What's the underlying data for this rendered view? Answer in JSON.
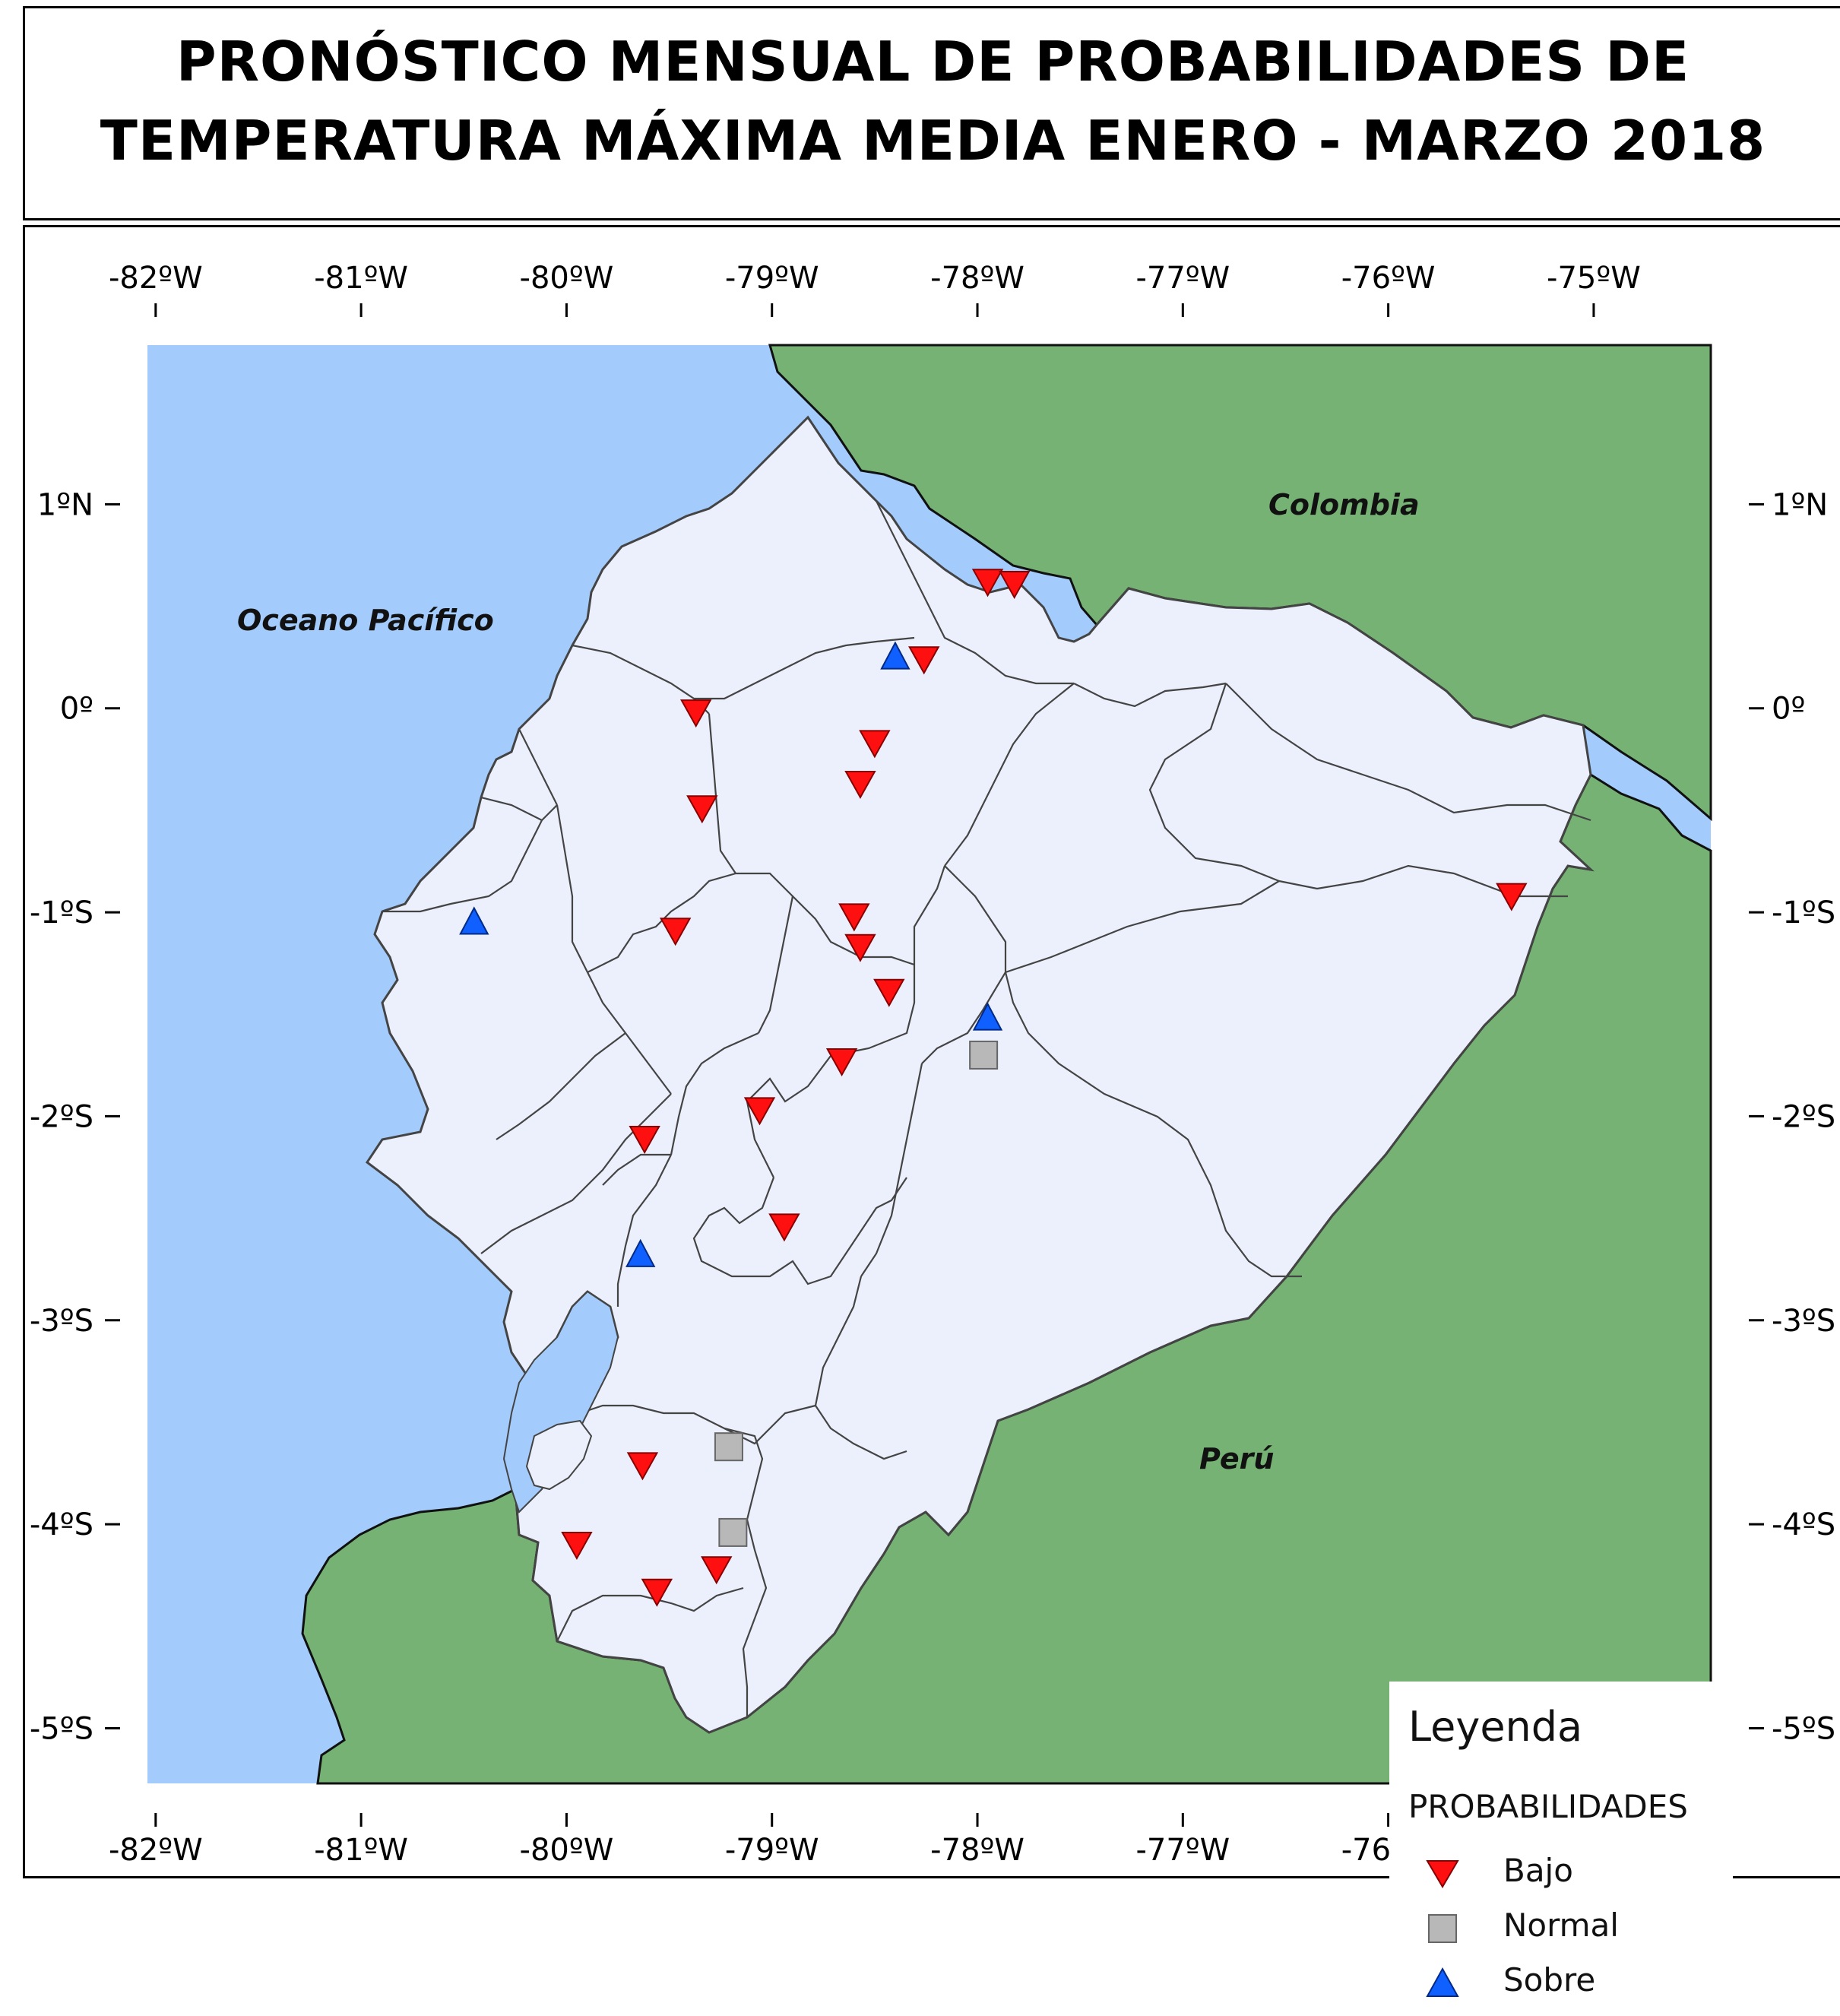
{
  "title": {
    "line1": "PRONÓSTICO MENSUAL DE PROBABILIDADES DE",
    "line2": "TEMPERATURA MÁXIMA MEDIA  ENERO - MARZO 2018"
  },
  "axes": {
    "lon_ticks": [
      {
        "value": -82,
        "label": "-82ºW"
      },
      {
        "value": -81,
        "label": "-81ºW"
      },
      {
        "value": -80,
        "label": "-80ºW"
      },
      {
        "value": -79,
        "label": "-79ºW"
      },
      {
        "value": -78,
        "label": "-78ºW"
      },
      {
        "value": -77,
        "label": "-77ºW"
      },
      {
        "value": -76,
        "label": "-76ºW"
      },
      {
        "value": -75,
        "label": "-75ºW"
      }
    ],
    "lat_ticks": [
      {
        "value": 1,
        "label": "1ºN"
      },
      {
        "value": 0,
        "label": "0º"
      },
      {
        "value": -1,
        "label": "-1ºS"
      },
      {
        "value": -2,
        "label": "-2ºS"
      },
      {
        "value": -3,
        "label": "-3ºS"
      },
      {
        "value": -4,
        "label": "-4ºS"
      },
      {
        "value": -5,
        "label": "-5ºS"
      }
    ],
    "lon_range": [
      -82.04,
      -74.43
    ],
    "lat_range": [
      -5.27,
      1.78
    ]
  },
  "labels": {
    "colombia": "Colombia",
    "ocean": "Oceano Pacífico",
    "peru": "Perú"
  },
  "colors": {
    "ocean": "#a3cbfc",
    "neighbor": "#75b274",
    "land": "#ebf0fc",
    "border": "#333333",
    "bajo": "#ff1010",
    "normal": "#b8b8b8",
    "sobre": "#1060ff"
  },
  "legend": {
    "title": "Leyenda",
    "subtitle": "PROBABILIDADES",
    "items": [
      {
        "key": "bajo",
        "label": "Bajo"
      },
      {
        "key": "normal",
        "label": "Normal"
      },
      {
        "key": "sobre",
        "label": "Sobre"
      }
    ]
  },
  "stations": [
    {
      "lon": -77.95,
      "lat": 0.62,
      "cat": "bajo"
    },
    {
      "lon": -77.82,
      "lat": 0.61,
      "cat": "bajo"
    },
    {
      "lon": -78.4,
      "lat": 0.25,
      "cat": "sobre"
    },
    {
      "lon": -78.26,
      "lat": 0.24,
      "cat": "bajo"
    },
    {
      "lon": -79.37,
      "lat": -0.02,
      "cat": "bajo"
    },
    {
      "lon": -78.5,
      "lat": -0.17,
      "cat": "bajo"
    },
    {
      "lon": -78.57,
      "lat": -0.37,
      "cat": "bajo"
    },
    {
      "lon": -79.34,
      "lat": -0.49,
      "cat": "bajo"
    },
    {
      "lon": -80.45,
      "lat": -1.05,
      "cat": "sobre"
    },
    {
      "lon": -79.47,
      "lat": -1.09,
      "cat": "bajo"
    },
    {
      "lon": -78.6,
      "lat": -1.02,
      "cat": "bajo"
    },
    {
      "lon": -78.57,
      "lat": -1.17,
      "cat": "bajo"
    },
    {
      "lon": -78.43,
      "lat": -1.39,
      "cat": "bajo"
    },
    {
      "lon": -77.95,
      "lat": -1.52,
      "cat": "sobre"
    },
    {
      "lon": -77.97,
      "lat": -1.7,
      "cat": "normal"
    },
    {
      "lon": -78.66,
      "lat": -1.73,
      "cat": "bajo"
    },
    {
      "lon": -79.06,
      "lat": -1.97,
      "cat": "bajo"
    },
    {
      "lon": -79.62,
      "lat": -2.11,
      "cat": "bajo"
    },
    {
      "lon": -78.94,
      "lat": -2.54,
      "cat": "bajo"
    },
    {
      "lon": -79.64,
      "lat": -2.68,
      "cat": "sobre"
    },
    {
      "lon": -79.21,
      "lat": -3.62,
      "cat": "normal"
    },
    {
      "lon": -79.63,
      "lat": -3.71,
      "cat": "bajo"
    },
    {
      "lon": -79.19,
      "lat": -4.04,
      "cat": "normal"
    },
    {
      "lon": -79.95,
      "lat": -4.1,
      "cat": "bajo"
    },
    {
      "lon": -79.27,
      "lat": -4.22,
      "cat": "bajo"
    },
    {
      "lon": -79.56,
      "lat": -4.33,
      "cat": "bajo"
    },
    {
      "lon": -75.4,
      "lat": -0.92,
      "cat": "bajo"
    }
  ]
}
